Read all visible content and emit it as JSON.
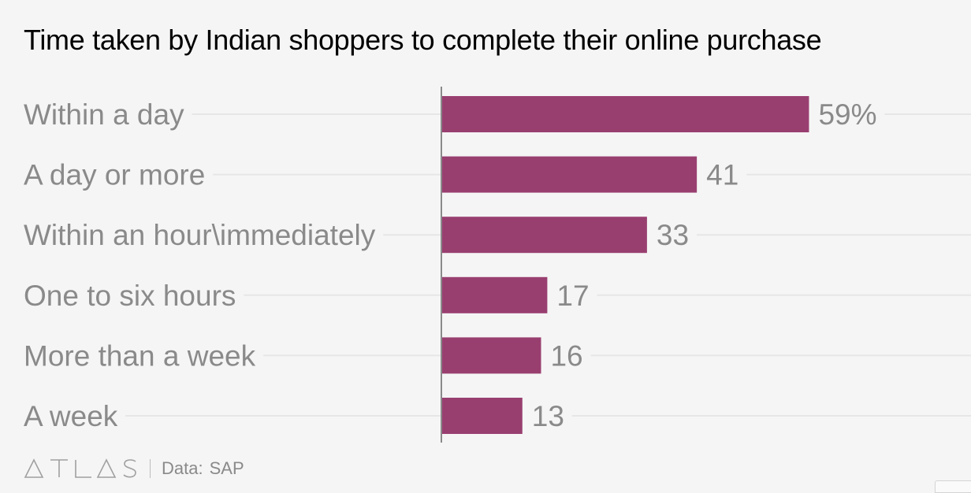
{
  "title": "Time taken by Indian shoppers to complete their online purchase",
  "chart_data": {
    "type": "bar",
    "orientation": "horizontal",
    "title": "Time taken by Indian shoppers to complete their online purchase",
    "categories": [
      "Within a day",
      "A day or more",
      "Within an hour\\immediately",
      "One to six hours",
      "More than a week",
      "A week"
    ],
    "values": [
      59,
      41,
      33,
      17,
      16,
      13
    ],
    "value_labels": [
      "59%",
      "41",
      "33",
      "17",
      "16",
      "13"
    ],
    "unit": "%",
    "xlim": [
      0,
      85
    ],
    "grid": true,
    "bar_color": "#993f70"
  },
  "footer": {
    "brand": "ATLAS",
    "source_label": "Data:",
    "source_name": "SAP"
  }
}
